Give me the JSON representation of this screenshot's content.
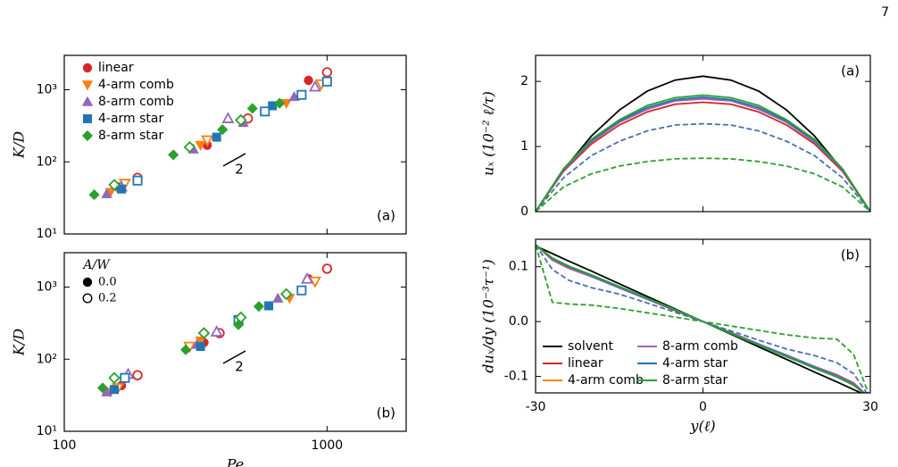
{
  "page_number": "7",
  "chart_data": [
    {
      "type": "scatter",
      "xlog": true,
      "ylog": true,
      "xlim": [
        100,
        2000
      ],
      "ylim": [
        10,
        3000
      ],
      "xticks": [
        100,
        1000
      ],
      "show_xtick_labels": false,
      "yticks": [
        {
          "value": 10,
          "label": "10¹"
        },
        {
          "value": 100,
          "label": "10²"
        },
        {
          "value": 1000,
          "label": "10³"
        }
      ],
      "ylabel": "K/D",
      "annotation": "(a)",
      "slope_label": "2",
      "series_legend": true,
      "legend_corner": "upper left",
      "series": [
        {
          "name": "linear",
          "color": "#d62728",
          "marker": "circle",
          "x": [
            160,
            350,
            850
          ],
          "values": [
            45,
            170,
            1350
          ],
          "x_open": [
            190,
            500,
            1000
          ],
          "values_open": [
            60,
            400,
            1750
          ]
        },
        {
          "name": "4-arm comb",
          "color": "#ff7f0e",
          "marker": "tri-down",
          "x": [
            150,
            330,
            700
          ],
          "values": [
            38,
            170,
            650
          ],
          "x_open": [
            170,
            350,
            950
          ],
          "values_open": [
            50,
            200,
            1200
          ]
        },
        {
          "name": "8-arm comb",
          "color": "#9467bd",
          "marker": "tri-up",
          "x": [
            145,
            310,
            480,
            750
          ],
          "values": [
            36,
            150,
            350,
            800
          ],
          "x_open": [
            165,
            420,
            900
          ],
          "values_open": [
            45,
            400,
            1100
          ]
        },
        {
          "name": "4-arm star",
          "color": "#1f77b4",
          "marker": "square",
          "x": [
            165,
            380,
            620
          ],
          "values": [
            42,
            220,
            600
          ],
          "x_open": [
            190,
            580,
            800,
            1000
          ],
          "values_open": [
            55,
            500,
            850,
            1300
          ]
        },
        {
          "name": "8-arm star",
          "color": "#2ca02c",
          "marker": "diamond",
          "x": [
            130,
            260,
            400,
            520,
            660
          ],
          "values": [
            35,
            125,
            280,
            550,
            650
          ],
          "x_open": [
            155,
            300,
            470
          ],
          "values_open": [
            48,
            160,
            380
          ]
        }
      ]
    },
    {
      "type": "scatter",
      "xlog": true,
      "ylog": true,
      "xlim": [
        100,
        2000
      ],
      "ylim": [
        10,
        3000
      ],
      "xticks": [
        100,
        1000
      ],
      "xlabel": "Pe",
      "yticks": [
        {
          "value": 10,
          "label": "10¹"
        },
        {
          "value": 100,
          "label": "10²"
        },
        {
          "value": 1000,
          "label": "10³"
        }
      ],
      "ylabel": "K/D",
      "annotation": "(b)",
      "slope_label": "2",
      "legend_corner": "upper left",
      "fill_legend": {
        "title": "A/W",
        "filled": "0.0",
        "open": "0.2"
      },
      "series": [
        {
          "color": "#d62728",
          "marker": "circle",
          "x": [
            165,
            340,
            850
          ],
          "values": [
            43,
            170,
            1300
          ],
          "x_open": [
            190,
            390,
            1000
          ],
          "values_open": [
            60,
            230,
            1800
          ]
        },
        {
          "color": "#ff7f0e",
          "marker": "tri-down",
          "x": [
            150,
            330,
            720
          ],
          "values": [
            35,
            180,
            700
          ],
          "x_open": [
            160,
            300,
            900
          ],
          "values_open": [
            40,
            150,
            1200
          ]
        },
        {
          "color": "#9467bd",
          "marker": "tri-up",
          "x": [
            145,
            320,
            650
          ],
          "values": [
            35,
            160,
            700
          ],
          "x_open": [
            175,
            380,
            840
          ],
          "values_open": [
            62,
            240,
            1300
          ]
        },
        {
          "color": "#1f77b4",
          "marker": "square",
          "x": [
            155,
            330,
            600
          ],
          "values": [
            38,
            150,
            550
          ],
          "x_open": [
            170,
            460,
            800
          ],
          "values_open": [
            55,
            350,
            900
          ]
        },
        {
          "color": "#2ca02c",
          "marker": "diamond",
          "x": [
            140,
            290,
            460,
            550
          ],
          "values": [
            40,
            135,
            300,
            540
          ],
          "x_open": [
            155,
            340,
            470,
            700
          ],
          "values_open": [
            55,
            230,
            380,
            800
          ]
        }
      ]
    },
    {
      "type": "line",
      "xlim": [
        -30,
        30
      ],
      "ylim": [
        0,
        2.4
      ],
      "xticks": [
        -30,
        0,
        30
      ],
      "show_xtick_labels": false,
      "yticks": [
        0,
        1,
        2
      ],
      "ylabel": "uₓ (10⁻² ℓ/τ)",
      "annotation": "(a)",
      "x": [
        -30,
        -25,
        -20,
        -15,
        -10,
        -5,
        0,
        5,
        10,
        15,
        20,
        25,
        30
      ],
      "series": [
        {
          "name": "solvent",
          "color": "#000000",
          "values": [
            0,
            0.64,
            1.16,
            1.56,
            1.85,
            2.02,
            2.08,
            2.02,
            1.85,
            1.56,
            1.16,
            0.64,
            0
          ]
        },
        {
          "name": "linear",
          "color": "#d62728",
          "values": [
            0,
            0.62,
            1.04,
            1.33,
            1.53,
            1.65,
            1.68,
            1.65,
            1.53,
            1.33,
            1.04,
            0.62,
            0
          ]
        },
        {
          "name": "4-arm comb",
          "color": "#ff7f0e",
          "values": [
            0,
            0.65,
            1.09,
            1.38,
            1.59,
            1.72,
            1.75,
            1.72,
            1.59,
            1.38,
            1.09,
            0.65,
            0
          ]
        },
        {
          "name": "8-arm comb",
          "color": "#9467bd",
          "values": [
            0,
            0.64,
            1.07,
            1.37,
            1.57,
            1.7,
            1.73,
            1.7,
            1.57,
            1.37,
            1.07,
            0.64,
            0
          ]
        },
        {
          "name": "4-arm star",
          "color": "#1f77b4",
          "values": [
            0,
            0.65,
            1.09,
            1.39,
            1.6,
            1.72,
            1.76,
            1.72,
            1.6,
            1.39,
            1.09,
            0.65,
            0
          ]
        },
        {
          "name": "8-arm star",
          "color": "#2ca02c",
          "values": [
            0,
            0.66,
            1.11,
            1.41,
            1.63,
            1.75,
            1.79,
            1.75,
            1.63,
            1.41,
            1.11,
            0.66,
            0
          ]
        },
        {
          "name": "4-arm star",
          "color": "#4a6fb0",
          "dashed": true,
          "values": [
            0,
            0.52,
            0.86,
            1.08,
            1.24,
            1.33,
            1.35,
            1.33,
            1.24,
            1.08,
            0.86,
            0.52,
            0
          ]
        },
        {
          "name": "8-arm star",
          "color": "#2ca02c",
          "dashed": true,
          "values": [
            0,
            0.38,
            0.58,
            0.7,
            0.77,
            0.81,
            0.82,
            0.81,
            0.77,
            0.7,
            0.58,
            0.38,
            0
          ]
        }
      ]
    },
    {
      "type": "line",
      "xlim": [
        -30,
        30
      ],
      "ylim": [
        -0.13,
        0.15
      ],
      "xticks": [
        -30,
        0,
        30
      ],
      "xlabel": "y(ℓ)",
      "yticks": [
        -0.1,
        {
          "value": 0,
          "label": "0.0"
        },
        0.1
      ],
      "ylabel": "duₓ/dy (10⁻³τ⁻¹)",
      "annotation": "(b)",
      "series_legend": true,
      "legend_corner": "lower left",
      "x": [
        -30,
        -27,
        -24,
        -20,
        -15,
        -10,
        -5,
        0,
        5,
        10,
        15,
        20,
        24,
        27,
        30
      ],
      "series": [
        {
          "name": "solvent",
          "color": "#000000",
          "values": [
            0.138,
            0.124,
            0.11,
            0.092,
            0.069,
            0.046,
            0.023,
            0,
            -0.023,
            -0.046,
            -0.069,
            -0.092,
            -0.11,
            -0.124,
            -0.138
          ]
        },
        {
          "name": "linear",
          "color": "#d62728",
          "values": [
            0.14,
            0.112,
            0.097,
            0.082,
            0.062,
            0.041,
            0.02,
            0,
            -0.02,
            -0.041,
            -0.062,
            -0.082,
            -0.097,
            -0.112,
            -0.14
          ]
        },
        {
          "name": "4-arm comb",
          "color": "#ff7f0e",
          "values": [
            0.14,
            0.114,
            0.099,
            0.083,
            0.063,
            0.042,
            0.021,
            0,
            -0.021,
            -0.042,
            -0.063,
            -0.083,
            -0.099,
            -0.114,
            -0.14
          ]
        },
        {
          "name": "8-arm comb",
          "color": "#9467bd",
          "values": [
            0.14,
            0.113,
            0.098,
            0.082,
            0.061,
            0.041,
            0.021,
            0,
            -0.021,
            -0.041,
            -0.061,
            -0.082,
            -0.098,
            -0.113,
            -0.14
          ]
        },
        {
          "name": "4-arm star",
          "color": "#1f77b4",
          "values": [
            0.14,
            0.115,
            0.1,
            0.084,
            0.063,
            0.042,
            0.021,
            0,
            -0.021,
            -0.042,
            -0.063,
            -0.084,
            -0.1,
            -0.115,
            -0.14
          ]
        },
        {
          "name": "8-arm star",
          "color": "#2ca02c",
          "values": [
            0.14,
            0.116,
            0.101,
            0.085,
            0.064,
            0.043,
            0.022,
            0,
            -0.022,
            -0.043,
            -0.064,
            -0.085,
            -0.101,
            -0.116,
            -0.14
          ]
        },
        {
          "name": "4-arm star",
          "color": "#4a6fb0",
          "dashed": true,
          "values": [
            0.14,
            0.095,
            0.075,
            0.062,
            0.05,
            0.034,
            0.017,
            0,
            -0.017,
            -0.034,
            -0.05,
            -0.062,
            -0.075,
            -0.095,
            -0.14
          ]
        },
        {
          "name": "8-arm star",
          "color": "#2ca02c",
          "dashed": true,
          "values": [
            0.14,
            0.035,
            0.032,
            0.03,
            0.024,
            0.016,
            0.008,
            0,
            -0.008,
            -0.016,
            -0.024,
            -0.03,
            -0.032,
            -0.06,
            -0.14
          ]
        }
      ]
    }
  ]
}
